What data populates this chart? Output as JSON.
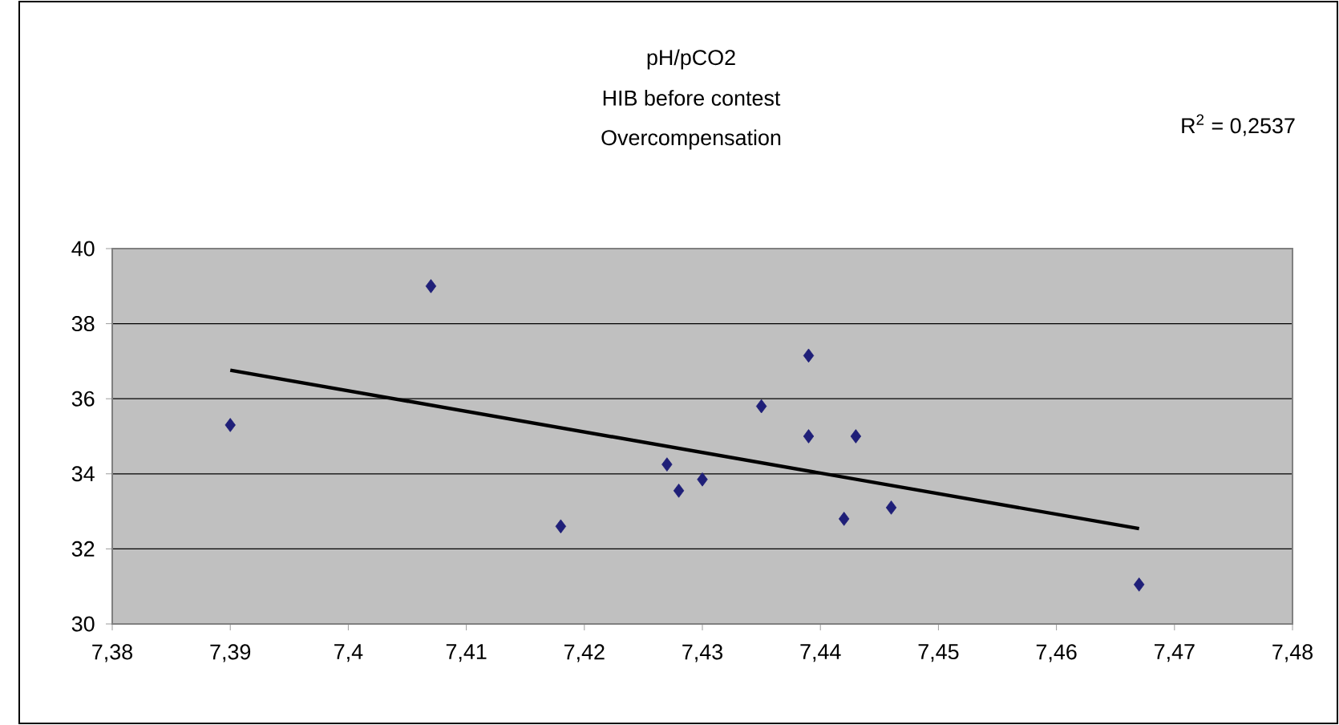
{
  "chart_data": {
    "type": "scatter",
    "title": "pH/pCO2",
    "subtitle": "HIB before contest",
    "annotations": [
      "Overcompensation",
      "R$^{2}$ = 0,2537"
    ],
    "series": [
      {
        "marker": "diamond",
        "color": "#1f1f78",
        "x": [
          7.39,
          7.407,
          7.418,
          7.427,
          7.428,
          7.43,
          7.435,
          7.439,
          7.439,
          7.443,
          7.442,
          7.446,
          7.467
        ],
        "values": [
          35.3,
          39.0,
          32.6,
          34.25,
          33.55,
          33.85,
          35.8,
          37.15,
          35.0,
          35.0,
          32.8,
          33.1,
          31.05
        ]
      },
      {
        "type": "line",
        "color": "#000000",
        "x": [
          7.39,
          7.467
        ],
        "values": [
          36.76,
          32.54
        ]
      }
    ],
    "grid": "y",
    "xlim": [
      7.38,
      7.48
    ],
    "xticks": [
      {
        "value": 7.38,
        "label": "7,38"
      },
      {
        "value": 7.39,
        "label": "7,39"
      },
      {
        "value": 7.4,
        "label": "7,4"
      },
      {
        "value": 7.41,
        "label": "7,41"
      },
      {
        "value": 7.42,
        "label": "7,42"
      },
      {
        "value": 7.43,
        "label": "7,43"
      },
      {
        "value": 7.44,
        "label": "7,44"
      },
      {
        "value": 7.45,
        "label": "7,45"
      },
      {
        "value": 7.46,
        "label": "7,46"
      },
      {
        "value": 7.47,
        "label": "7,47"
      },
      {
        "value": 7.48,
        "label": "7,48"
      }
    ],
    "ylim": [
      30,
      40
    ],
    "yticks": [
      30,
      32,
      34,
      36,
      38,
      40
    ]
  }
}
